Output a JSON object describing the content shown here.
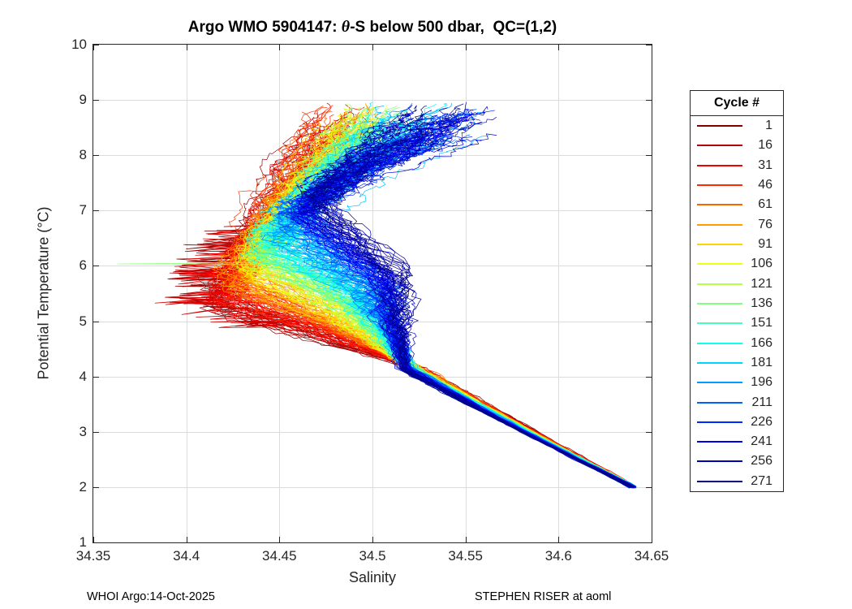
{
  "figure": {
    "footer_left": "WHOI Argo:14-Oct-2025",
    "footer_right": "STEPHEN RISER at aoml"
  },
  "chart_data": {
    "type": "line",
    "title": "Argo WMO 5904147: θ-S below 500 dbar,  QC=(1,2)",
    "title_parts": {
      "prefix": "Argo WMO 5904147: ",
      "theta": "θ",
      "suffix": "-S below 500 dbar,  QC=(1,2)"
    },
    "xlabel": "Salinity",
    "ylabel": "Potential Temperature (°C)",
    "xlim": [
      34.35,
      34.65
    ],
    "ylim": [
      1,
      10
    ],
    "xticks": [
      34.35,
      34.4,
      34.45,
      34.5,
      34.55,
      34.6,
      34.65
    ],
    "xtick_labels": [
      "34.35",
      "34.4",
      "34.45",
      "34.5",
      "34.55",
      "34.6",
      "34.65"
    ],
    "yticks": [
      1,
      2,
      3,
      4,
      5,
      6,
      7,
      8,
      9,
      10
    ],
    "ytick_labels": [
      "1",
      "2",
      "3",
      "4",
      "5",
      "6",
      "7",
      "8",
      "9",
      "10"
    ],
    "grid": true,
    "grid_color": "#dcdcdc",
    "axis_color": "#262626",
    "n_profiles": 271,
    "colormap": "jet-reversed (cycle 1 = dark red, cycle 271 = dark navy)",
    "legend": {
      "title": "Cycle #",
      "position": "outside-right",
      "entries": [
        {
          "cycle": 1,
          "color": "#800000"
        },
        {
          "cycle": 16,
          "color": "#B80000"
        },
        {
          "cycle": 31,
          "color": "#F10000"
        },
        {
          "cycle": 46,
          "color": "#FF2A00"
        },
        {
          "cycle": 61,
          "color": "#FF6300"
        },
        {
          "cycle": 76,
          "color": "#FF9C00"
        },
        {
          "cycle": 91,
          "color": "#FFD400"
        },
        {
          "cycle": 106,
          "color": "#F1FF0E"
        },
        {
          "cycle": 121,
          "color": "#B8FF47"
        },
        {
          "cycle": 136,
          "color": "#80FF80"
        },
        {
          "cycle": 151,
          "color": "#47FFB8"
        },
        {
          "cycle": 166,
          "color": "#0EFFF1"
        },
        {
          "cycle": 181,
          "color": "#00D4FF"
        },
        {
          "cycle": 196,
          "color": "#009CFF"
        },
        {
          "cycle": 211,
          "color": "#0063FF"
        },
        {
          "cycle": 226,
          "color": "#002AFF"
        },
        {
          "cycle": 241,
          "color": "#0000F1"
        },
        {
          "cycle": 256,
          "color": "#0000B8"
        },
        {
          "cycle": 271,
          "color": "#000080"
        }
      ]
    },
    "profile_model": {
      "description": "Each cycle is a theta-S profile below 500 dbar. All converge at the deep end, rise along a tight band to a salinity minimum, then fan up-right; early (red) cycles are fresher/left, late (blue) cycles saltier/right.",
      "deep_end": {
        "salinity": 34.64,
        "theta": 2.0
      },
      "tight_band": [
        {
          "theta": 3.0,
          "salinity": 34.584
        },
        {
          "theta": 4.15,
          "salinity": 34.521
        }
      ],
      "salinity_min": {
        "early_cycles": 34.414,
        "late_cycles": 34.468
      },
      "turn_theta": {
        "early_cycles": 5.25,
        "late_cycles": 7.3
      },
      "fan_top": {
        "theta_mean": 8.6,
        "theta_max": 9.0,
        "salinity_early": 34.48,
        "salinity_late": 34.535,
        "salinity_max": 34.585
      },
      "red_left_scatter": {
        "cycles_below": 35,
        "min_salinity": 34.38,
        "theta_range": [
          5.0,
          6.7
        ]
      },
      "green_spike": {
        "cycle": 133,
        "theta": 6.03,
        "min_salinity": 34.363
      }
    }
  }
}
